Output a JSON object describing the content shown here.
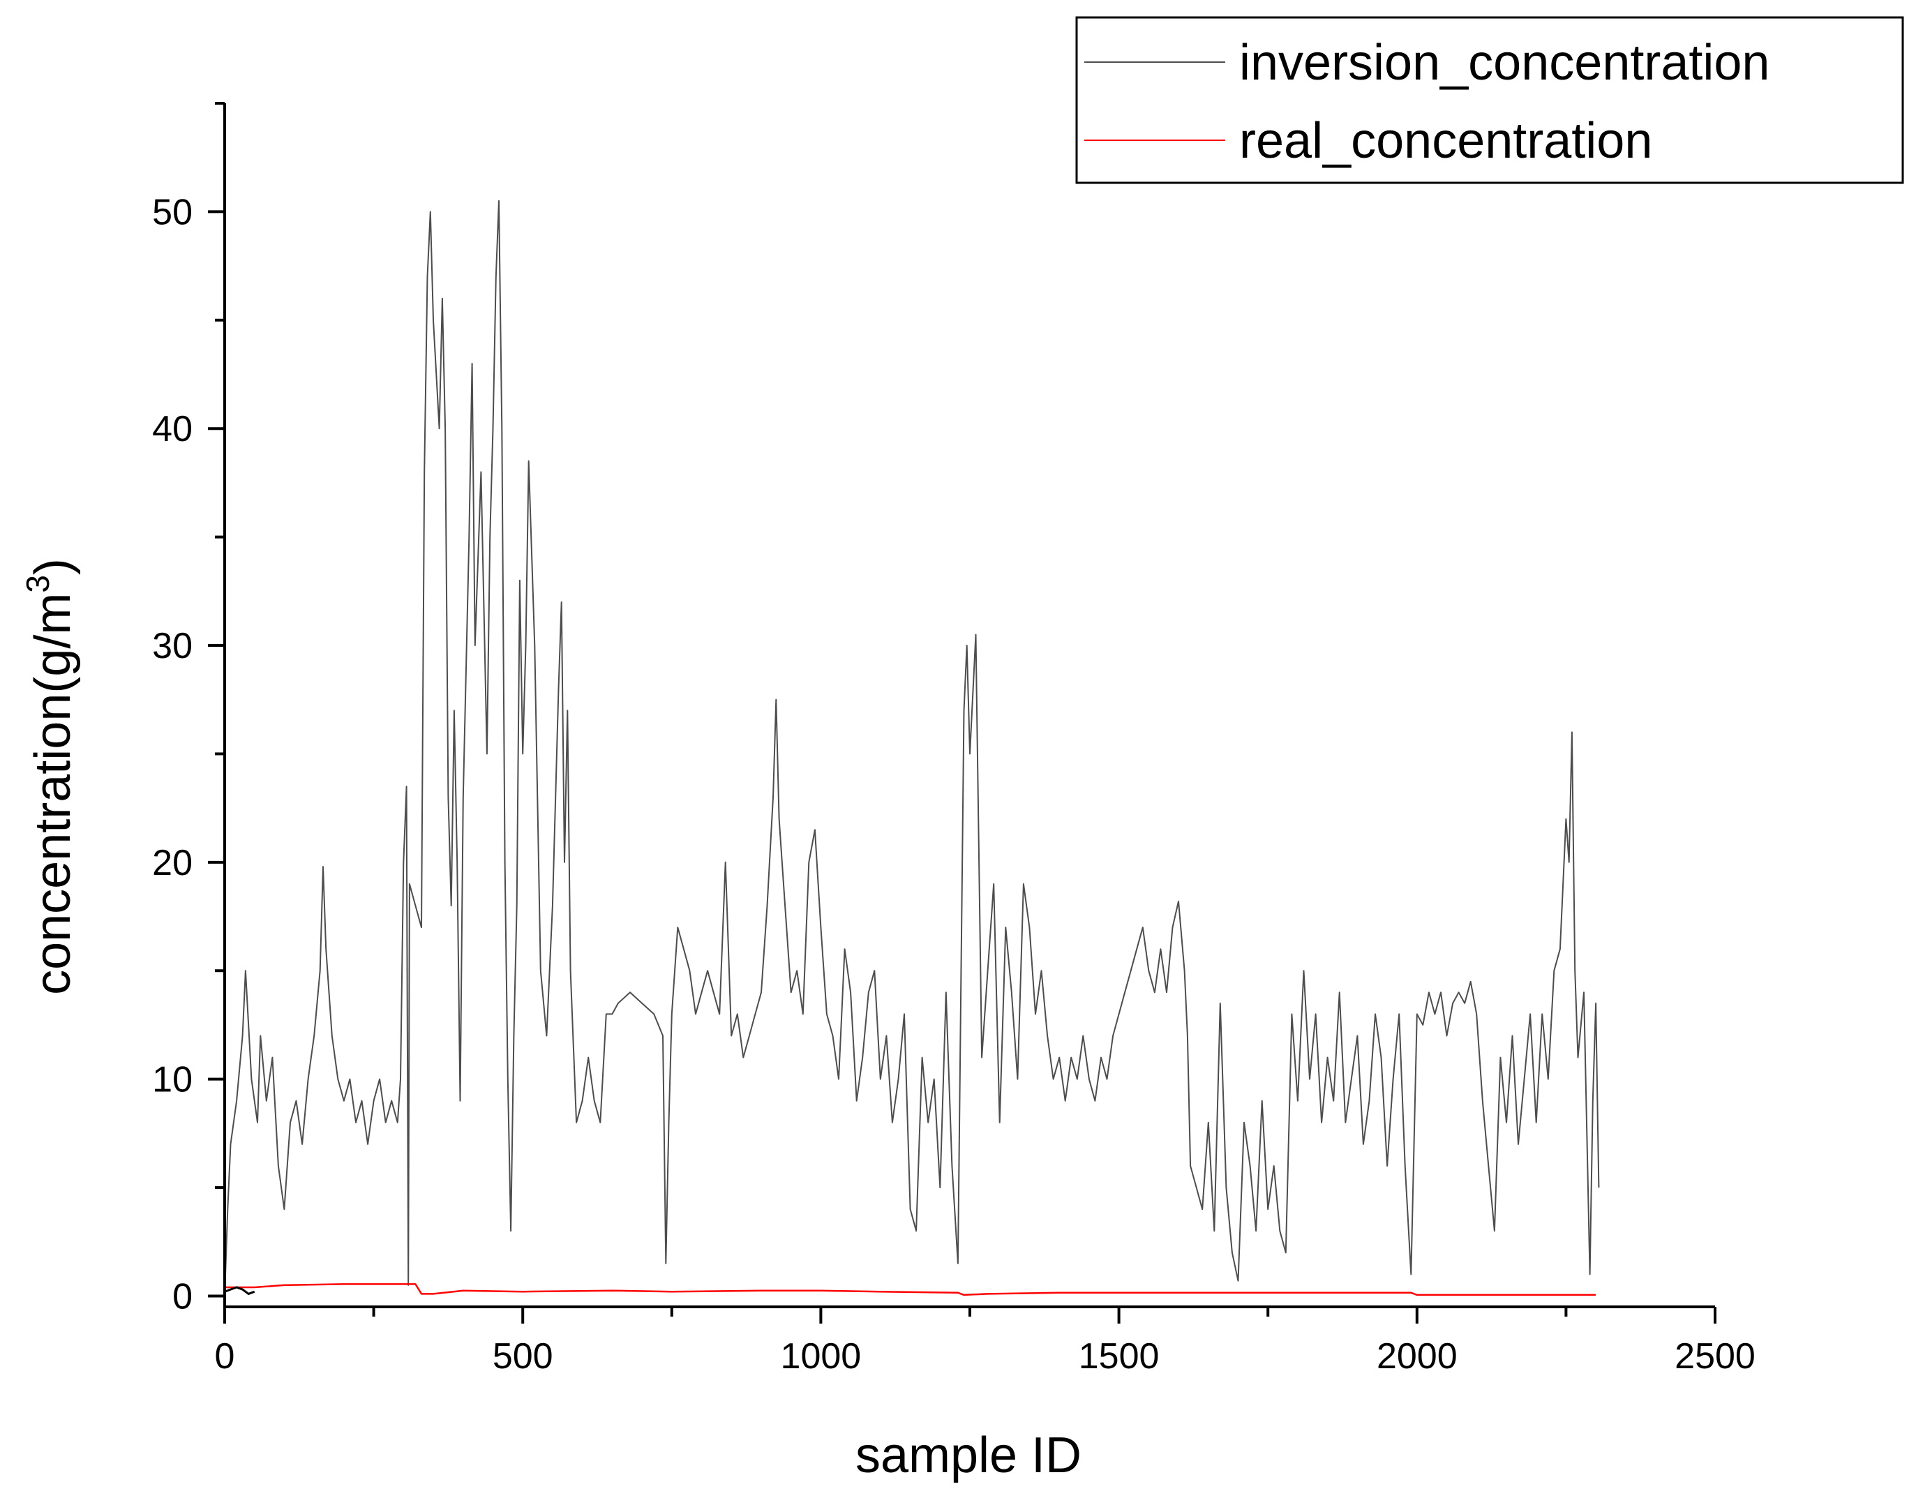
{
  "chart_data": {
    "type": "line",
    "xlabel": "sample ID",
    "ylabel": "concentration(g/m",
    "ylabel_sup": "3",
    "ylabel_close": ")",
    "xlim": [
      0,
      2500
    ],
    "ylim": [
      -0.5,
      55
    ],
    "xticks": [
      "0",
      "500",
      "1000",
      "1500",
      "2000",
      "2500"
    ],
    "yticks": [
      "0",
      "10",
      "20",
      "30",
      "40",
      "50"
    ],
    "legend_position": "top-right",
    "grid": false,
    "series": [
      {
        "name": "inversion_concentration",
        "color": "#4d4d4d",
        "points": [
          [
            0,
            0
          ],
          [
            5,
            4
          ],
          [
            10,
            7
          ],
          [
            20,
            9
          ],
          [
            30,
            12
          ],
          [
            35,
            15
          ],
          [
            45,
            10
          ],
          [
            55,
            8
          ],
          [
            60,
            12
          ],
          [
            70,
            9
          ],
          [
            80,
            11
          ],
          [
            90,
            6
          ],
          [
            100,
            4
          ],
          [
            110,
            8
          ],
          [
            120,
            9
          ],
          [
            130,
            7
          ],
          [
            140,
            10
          ],
          [
            150,
            12
          ],
          [
            160,
            15
          ],
          [
            165,
            19.8
          ],
          [
            170,
            16
          ],
          [
            180,
            12
          ],
          [
            190,
            10
          ],
          [
            200,
            9
          ],
          [
            210,
            10
          ],
          [
            220,
            8
          ],
          [
            230,
            9
          ],
          [
            240,
            7
          ],
          [
            250,
            9
          ],
          [
            260,
            10
          ],
          [
            270,
            8
          ],
          [
            280,
            9
          ],
          [
            290,
            8
          ],
          [
            295,
            10
          ],
          [
            300,
            20
          ],
          [
            305,
            23.5
          ],
          [
            308,
            0.5
          ],
          [
            310,
            19
          ],
          [
            320,
            18
          ],
          [
            330,
            17
          ],
          [
            335,
            38
          ],
          [
            340,
            47
          ],
          [
            345,
            50
          ],
          [
            350,
            45
          ],
          [
            360,
            40
          ],
          [
            365,
            46
          ],
          [
            370,
            40
          ],
          [
            375,
            23
          ],
          [
            380,
            18
          ],
          [
            385,
            27
          ],
          [
            390,
            20
          ],
          [
            395,
            9
          ],
          [
            400,
            23
          ],
          [
            410,
            35
          ],
          [
            415,
            43
          ],
          [
            420,
            30
          ],
          [
            430,
            38
          ],
          [
            440,
            25
          ],
          [
            445,
            35
          ],
          [
            450,
            40
          ],
          [
            455,
            47
          ],
          [
            460,
            50.5
          ],
          [
            465,
            40
          ],
          [
            470,
            20
          ],
          [
            475,
            10
          ],
          [
            480,
            3
          ],
          [
            485,
            12
          ],
          [
            490,
            18
          ],
          [
            495,
            33
          ],
          [
            500,
            25
          ],
          [
            505,
            30
          ],
          [
            510,
            38.5
          ],
          [
            520,
            30
          ],
          [
            530,
            15
          ],
          [
            540,
            12
          ],
          [
            550,
            18
          ],
          [
            560,
            28
          ],
          [
            565,
            32
          ],
          [
            570,
            20
          ],
          [
            575,
            27
          ],
          [
            580,
            15
          ],
          [
            590,
            8
          ],
          [
            600,
            9
          ],
          [
            610,
            11
          ],
          [
            620,
            9
          ],
          [
            630,
            8
          ],
          [
            640,
            13
          ],
          [
            650,
            13
          ],
          [
            660,
            13.5
          ],
          [
            680,
            14
          ],
          [
            700,
            13.5
          ],
          [
            720,
            13
          ],
          [
            735,
            12
          ],
          [
            740,
            1.5
          ],
          [
            745,
            8
          ],
          [
            750,
            13
          ],
          [
            760,
            17
          ],
          [
            770,
            16
          ],
          [
            780,
            15
          ],
          [
            790,
            13
          ],
          [
            800,
            14
          ],
          [
            810,
            15
          ],
          [
            820,
            14
          ],
          [
            830,
            13
          ],
          [
            840,
            20
          ],
          [
            850,
            12
          ],
          [
            860,
            13
          ],
          [
            870,
            11
          ],
          [
            880,
            12
          ],
          [
            890,
            13
          ],
          [
            900,
            14
          ],
          [
            910,
            18
          ],
          [
            920,
            23
          ],
          [
            925,
            27.5
          ],
          [
            930,
            22
          ],
          [
            940,
            18
          ],
          [
            950,
            14
          ],
          [
            960,
            15
          ],
          [
            970,
            13
          ],
          [
            980,
            20
          ],
          [
            990,
            21.5
          ],
          [
            1000,
            17
          ],
          [
            1010,
            13
          ],
          [
            1020,
            12
          ],
          [
            1030,
            10
          ],
          [
            1040,
            16
          ],
          [
            1050,
            14
          ],
          [
            1060,
            9
          ],
          [
            1070,
            11
          ],
          [
            1080,
            14
          ],
          [
            1090,
            15
          ],
          [
            1100,
            10
          ],
          [
            1110,
            12
          ],
          [
            1120,
            8
          ],
          [
            1130,
            10
          ],
          [
            1140,
            13
          ],
          [
            1150,
            4
          ],
          [
            1160,
            3
          ],
          [
            1170,
            11
          ],
          [
            1180,
            8
          ],
          [
            1190,
            10
          ],
          [
            1200,
            5
          ],
          [
            1210,
            14
          ],
          [
            1220,
            6
          ],
          [
            1230,
            1.5
          ],
          [
            1240,
            27
          ],
          [
            1245,
            30
          ],
          [
            1250,
            25
          ],
          [
            1260,
            30.5
          ],
          [
            1270,
            11
          ],
          [
            1280,
            15
          ],
          [
            1290,
            19
          ],
          [
            1300,
            8
          ],
          [
            1310,
            17
          ],
          [
            1320,
            14
          ],
          [
            1330,
            10
          ],
          [
            1340,
            19
          ],
          [
            1350,
            17
          ],
          [
            1360,
            13
          ],
          [
            1370,
            15
          ],
          [
            1380,
            12
          ],
          [
            1390,
            10
          ],
          [
            1400,
            11
          ],
          [
            1410,
            9
          ],
          [
            1420,
            11
          ],
          [
            1430,
            10
          ],
          [
            1440,
            12
          ],
          [
            1450,
            10
          ],
          [
            1460,
            9
          ],
          [
            1470,
            11
          ],
          [
            1480,
            10
          ],
          [
            1490,
            12
          ],
          [
            1500,
            13
          ],
          [
            1510,
            14
          ],
          [
            1520,
            15
          ],
          [
            1530,
            16
          ],
          [
            1540,
            17
          ],
          [
            1550,
            15
          ],
          [
            1560,
            14
          ],
          [
            1570,
            16
          ],
          [
            1580,
            14
          ],
          [
            1590,
            17
          ],
          [
            1600,
            18.2
          ],
          [
            1610,
            15
          ],
          [
            1615,
            12
          ],
          [
            1620,
            6
          ],
          [
            1630,
            5
          ],
          [
            1640,
            4
          ],
          [
            1650,
            8
          ],
          [
            1660,
            3
          ],
          [
            1670,
            13.5
          ],
          [
            1680,
            5
          ],
          [
            1690,
            2
          ],
          [
            1700,
            0.7
          ],
          [
            1710,
            8
          ],
          [
            1720,
            6
          ],
          [
            1730,
            3
          ],
          [
            1740,
            9
          ],
          [
            1750,
            4
          ],
          [
            1760,
            6
          ],
          [
            1770,
            3
          ],
          [
            1780,
            2
          ],
          [
            1790,
            13
          ],
          [
            1800,
            9
          ],
          [
            1810,
            15
          ],
          [
            1820,
            10
          ],
          [
            1830,
            13
          ],
          [
            1840,
            8
          ],
          [
            1850,
            11
          ],
          [
            1860,
            9
          ],
          [
            1870,
            14
          ],
          [
            1880,
            8
          ],
          [
            1890,
            10
          ],
          [
            1900,
            12
          ],
          [
            1910,
            7
          ],
          [
            1920,
            9
          ],
          [
            1930,
            13
          ],
          [
            1940,
            11
          ],
          [
            1950,
            6
          ],
          [
            1960,
            10
          ],
          [
            1970,
            13
          ],
          [
            1980,
            6
          ],
          [
            1990,
            1
          ],
          [
            2000,
            13
          ],
          [
            2010,
            12.5
          ],
          [
            2020,
            14
          ],
          [
            2030,
            13
          ],
          [
            2040,
            14
          ],
          [
            2050,
            12
          ],
          [
            2060,
            13.5
          ],
          [
            2070,
            14
          ],
          [
            2080,
            13.5
          ],
          [
            2090,
            14.5
          ],
          [
            2100,
            13
          ],
          [
            2110,
            9
          ],
          [
            2120,
            6
          ],
          [
            2130,
            3
          ],
          [
            2140,
            11
          ],
          [
            2150,
            8
          ],
          [
            2160,
            12
          ],
          [
            2170,
            7
          ],
          [
            2180,
            10
          ],
          [
            2190,
            13
          ],
          [
            2200,
            8
          ],
          [
            2210,
            13
          ],
          [
            2220,
            10
          ],
          [
            2230,
            15
          ],
          [
            2240,
            16
          ],
          [
            2250,
            22
          ],
          [
            2255,
            20
          ],
          [
            2260,
            26
          ],
          [
            2265,
            15
          ],
          [
            2270,
            11
          ],
          [
            2280,
            14
          ],
          [
            2290,
            1
          ],
          [
            2295,
            9
          ],
          [
            2300,
            13.5
          ],
          [
            2305,
            5
          ]
        ]
      },
      {
        "name": "real_concentration",
        "color": "#ff0000",
        "points": [
          [
            0,
            0.4
          ],
          [
            50,
            0.4
          ],
          [
            100,
            0.5
          ],
          [
            200,
            0.55
          ],
          [
            290,
            0.55
          ],
          [
            320,
            0.55
          ],
          [
            330,
            0.1
          ],
          [
            350,
            0.1
          ],
          [
            400,
            0.25
          ],
          [
            500,
            0.2
          ],
          [
            650,
            0.25
          ],
          [
            750,
            0.2
          ],
          [
            900,
            0.25
          ],
          [
            1000,
            0.25
          ],
          [
            1100,
            0.2
          ],
          [
            1230,
            0.15
          ],
          [
            1240,
            0.05
          ],
          [
            1280,
            0.1
          ],
          [
            1400,
            0.15
          ],
          [
            1500,
            0.15
          ],
          [
            1650,
            0.15
          ],
          [
            1800,
            0.15
          ],
          [
            1990,
            0.15
          ],
          [
            2000,
            0.05
          ],
          [
            2100,
            0.05
          ],
          [
            2300,
            0.05
          ]
        ]
      }
    ],
    "black_segment": {
      "color": "#000000",
      "points": [
        [
          0,
          0.2
        ],
        [
          10,
          0.3
        ],
        [
          20,
          0.4
        ],
        [
          30,
          0.3
        ],
        [
          40,
          0.1
        ],
        [
          50,
          0.2
        ]
      ]
    }
  }
}
